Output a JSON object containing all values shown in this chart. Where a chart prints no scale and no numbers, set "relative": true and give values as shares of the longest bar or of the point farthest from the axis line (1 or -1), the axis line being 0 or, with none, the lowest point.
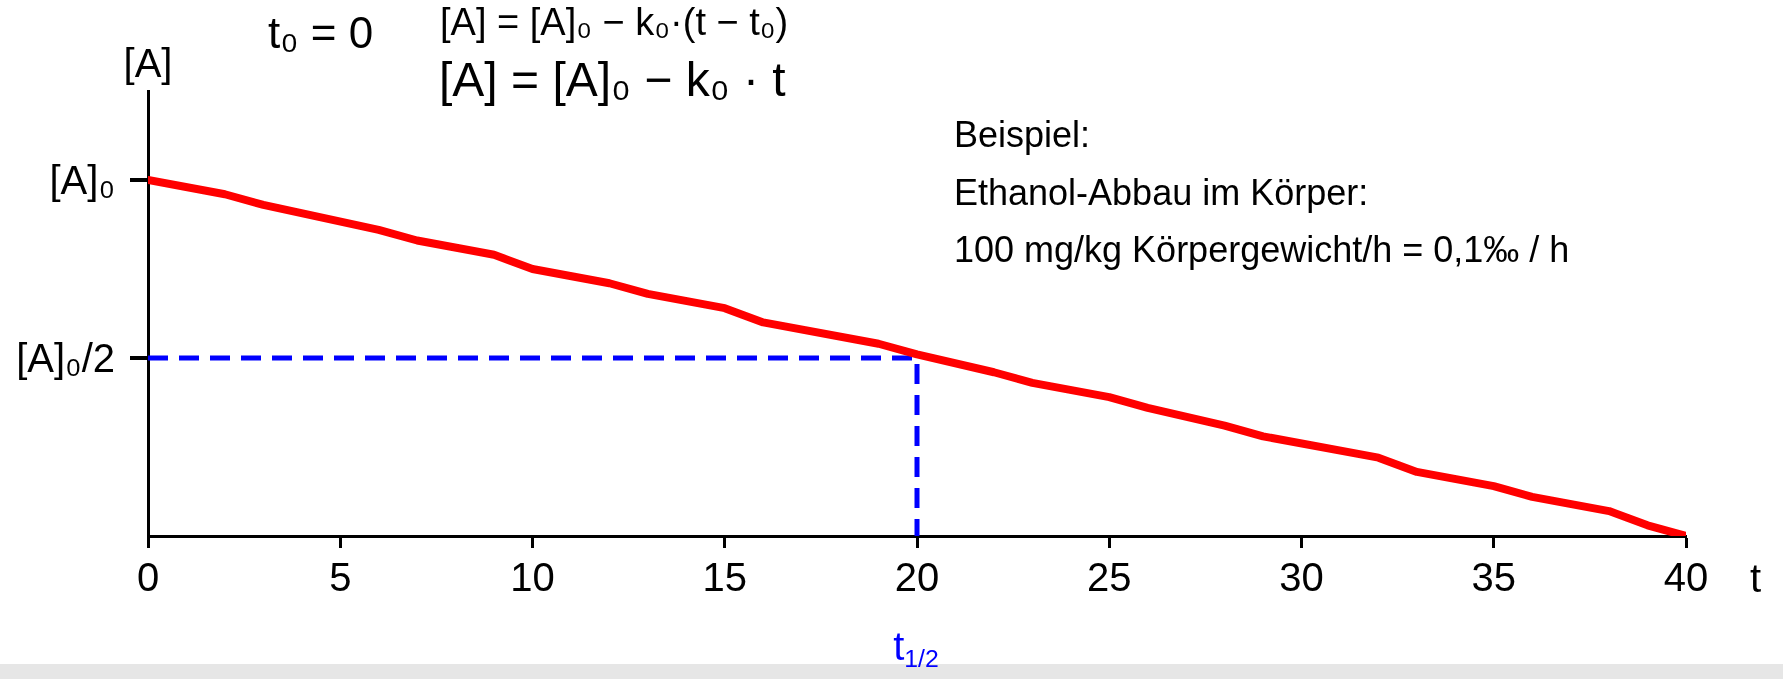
{
  "chart_data": {
    "type": "line",
    "xlabel": "t",
    "ylabel": "[A]",
    "relative": true,
    "annotations": [
      "t₀ = 0",
      "[A] = [A]₀ − k₀·(t − t₀)",
      "[A] = [A]₀ − k₀ · t",
      "Beispiel:",
      "Ethanol-Abbau im Körper:",
      "100 mg/kg Körpergewicht/h = 0,1‰ / h",
      "t$_{1/2}$",
      {
        "text": "[A]₀",
        "x": 0,
        "y": 1
      },
      {
        "text": "[A]₀/2",
        "x": 0,
        "y": 0.5
      }
    ],
    "series": [
      {
        "color": "#ff0000",
        "x": [
          0,
          2,
          3,
          6,
          7,
          9,
          10,
          12,
          13,
          15,
          16,
          19,
          20,
          22,
          23,
          25,
          26,
          28,
          29,
          32,
          33,
          35,
          36,
          38,
          39,
          40
        ],
        "values": [
          1,
          0.96,
          0.93,
          0.86,
          0.83,
          0.79,
          0.75,
          0.71,
          0.68,
          0.64,
          0.6,
          0.54,
          0.51,
          0.46,
          0.43,
          0.39,
          0.36,
          0.31,
          0.28,
          0.22,
          0.18,
          0.14,
          0.11,
          0.07,
          0.03,
          0
        ]
      },
      {
        "color": "#0000ff",
        "line_style": "dashed",
        "x": [
          0,
          20,
          20
        ],
        "values": [
          0.5,
          0.5,
          0
        ]
      }
    ],
    "xlim": [
      0,
      40
    ],
    "xticks": [
      0,
      5,
      10,
      15,
      20,
      25,
      30,
      35,
      40
    ],
    "marker": "none"
  }
}
